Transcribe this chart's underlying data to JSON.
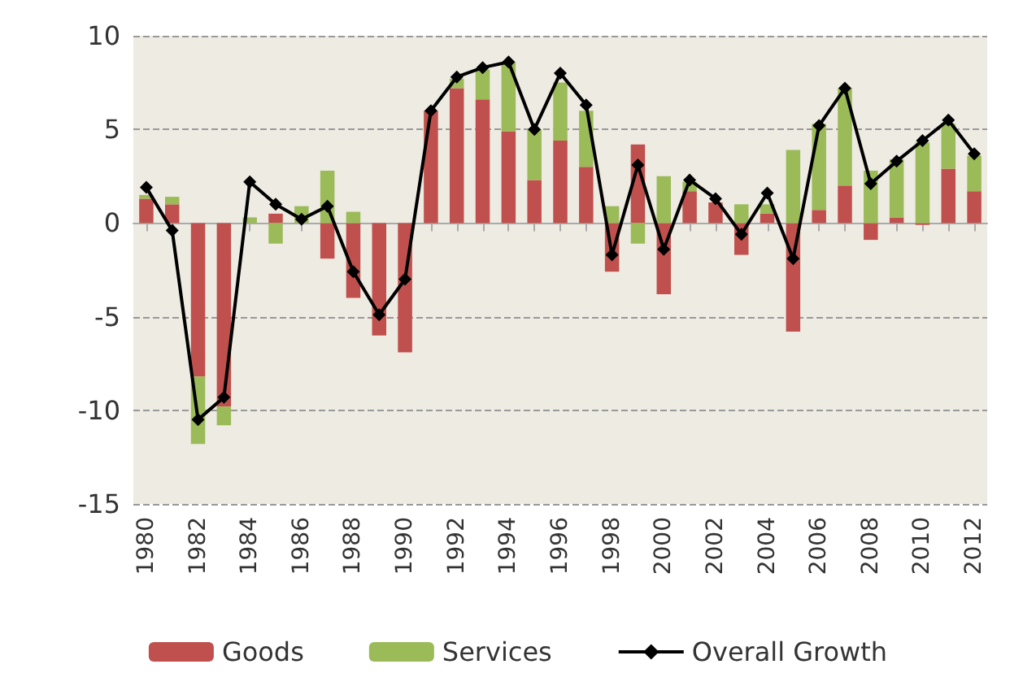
{
  "chart_data": {
    "type": "bar",
    "stacked": true,
    "categories": [
      "1980",
      null,
      "1982",
      null,
      "1984",
      null,
      "1986",
      null,
      "1988",
      null,
      "1990",
      null,
      "1992",
      null,
      "1994",
      null,
      "1996",
      null,
      "1998",
      null,
      "2000",
      null,
      "2002",
      null,
      "2004",
      null,
      "2006",
      null,
      "2008",
      null,
      "2010",
      null,
      "2012"
    ],
    "series": [
      {
        "name": "Goods",
        "color": "#c0504d",
        "values": [
          1.3,
          1.0,
          -8.2,
          -9.8,
          0,
          0.5,
          null,
          -1.9,
          -4.0,
          -6.0,
          -6.9,
          6.0,
          7.2,
          6.6,
          4.9,
          2.3,
          4.4,
          3.0,
          -2.6,
          4.2,
          -3.8,
          1.7,
          1.1,
          -1.7,
          0.5,
          -5.8,
          0.7,
          2.0,
          -0.9,
          0.3,
          -0.1,
          2.9,
          1.7
        ]
      },
      {
        "name": "Services",
        "color": "#9bbb59",
        "values": [
          0.2,
          0.4,
          -3.6,
          -1.0,
          0.3,
          -1.1,
          0.9,
          2.8,
          0.6,
          0,
          0,
          0,
          0.5,
          1.6,
          3.7,
          2.7,
          3.1,
          3.0,
          0.9,
          -1.1,
          2.5,
          0.5,
          null,
          1.0,
          0.5,
          3.9,
          4.6,
          5.2,
          2.8,
          3.1,
          4.3,
          2.4,
          1.9
        ]
      },
      {
        "name": "Overall Growth",
        "type": "line",
        "color": "#000000",
        "marker": "diamond",
        "values": [
          1.9,
          -0.4,
          -10.5,
          -9.3,
          2.2,
          1.0,
          0.2,
          0.9,
          -2.6,
          -4.9,
          -3.0,
          6.0,
          7.8,
          8.3,
          8.6,
          5.0,
          8.0,
          6.3,
          -1.7,
          3.1,
          -1.4,
          2.3,
          1.3,
          -0.6,
          1.6,
          -1.9,
          5.2,
          7.2,
          2.1,
          3.3,
          4.4,
          5.5,
          3.7
        ]
      }
    ],
    "ylim": [
      -15,
      10
    ],
    "yticks": [
      -15,
      -10,
      -5,
      0,
      5,
      10
    ],
    "grid": "y",
    "legend": "bottom"
  }
}
